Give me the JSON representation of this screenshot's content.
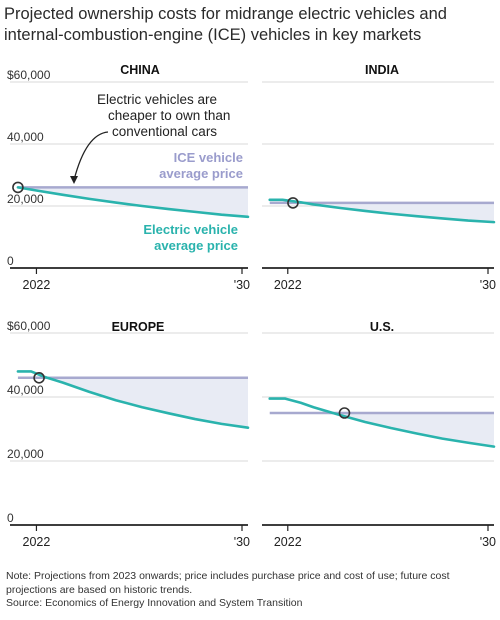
{
  "title": "Projected ownership costs for midrange electric vehicles and internal-combustion-engine (ICE) vehicles in key markets",
  "colors": {
    "ev": "#2ab3ad",
    "ice": "#a7a9cf",
    "band": "#e8ebf4",
    "axis": "#222222",
    "grid": "#d9d9d9",
    "annotation_ice": "#9a9ccc"
  },
  "chart_data": [
    {
      "type": "line",
      "title": "CHINA",
      "x_tick_labels": [
        "2022",
        "'30"
      ],
      "y_tick_labels": [
        "$60,000",
        "40,000",
        "20,000",
        "0"
      ],
      "ylim": [
        0,
        60000
      ],
      "xlim": [
        2021,
        2030
      ],
      "series": [
        {
          "name": "ICE vehicle average price",
          "x": [
            2021.3,
            2030
          ],
          "values": [
            26000,
            26000
          ]
        },
        {
          "name": "Electric vehicle average price",
          "x": [
            2021.3,
            2022,
            2023,
            2024,
            2025,
            2026,
            2027,
            2028,
            2029,
            2030
          ],
          "values": [
            26000,
            25000,
            23600,
            22300,
            21100,
            20000,
            19000,
            18100,
            17200,
            16500
          ]
        }
      ],
      "crossover": {
        "x": 2021.3,
        "y": 26000
      },
      "annotations": {
        "callout": "Electric vehicles are cheaper to own than conventional cars",
        "ice_label": "ICE vehicle average price",
        "ev_label": "Electric vehicle average price"
      }
    },
    {
      "type": "line",
      "title": "INDIA",
      "x_tick_labels": [
        "2022",
        "'30"
      ],
      "y_tick_labels": [],
      "ylim": [
        0,
        60000
      ],
      "xlim": [
        2021,
        2030
      ],
      "series": [
        {
          "x": [
            2021.3,
            2030
          ],
          "values": [
            21000,
            21000
          ]
        },
        {
          "x": [
            2021.3,
            2021.8,
            2022.5,
            2023,
            2024,
            2025,
            2026,
            2027,
            2028,
            2029,
            2030
          ],
          "values": [
            22000,
            22000,
            21200,
            20500,
            19400,
            18400,
            17500,
            16700,
            16000,
            15300,
            14800
          ]
        }
      ],
      "crossover": {
        "x": 2022.2,
        "y": 21000
      }
    },
    {
      "type": "line",
      "title": "EUROPE",
      "x_tick_labels": [
        "2022",
        "'30"
      ],
      "y_tick_labels": [
        "$60,000",
        "40,000",
        "20,000",
        "0"
      ],
      "ylim": [
        0,
        60000
      ],
      "xlim": [
        2021,
        2030
      ],
      "series": [
        {
          "x": [
            2021.3,
            2030
          ],
          "values": [
            46000,
            46000
          ]
        },
        {
          "x": [
            2021.3,
            2021.8,
            2022.3,
            2023,
            2024,
            2025,
            2026,
            2027,
            2028,
            2029,
            2030
          ],
          "values": [
            48000,
            48000,
            46300,
            44500,
            41600,
            39000,
            36800,
            34900,
            33100,
            31600,
            30400
          ]
        }
      ],
      "crossover": {
        "x": 2022.1,
        "y": 46000
      }
    },
    {
      "type": "line",
      "title": "U.S.",
      "x_tick_labels": [
        "2022",
        "'30"
      ],
      "y_tick_labels": [],
      "ylim": [
        0,
        60000
      ],
      "xlim": [
        2021,
        2030
      ],
      "series": [
        {
          "x": [
            2021.3,
            2030
          ],
          "values": [
            35000,
            35000
          ]
        },
        {
          "x": [
            2021.3,
            2021.9,
            2022.5,
            2023,
            2024,
            2025,
            2026,
            2027,
            2028,
            2029,
            2030
          ],
          "values": [
            39500,
            39500,
            38200,
            36800,
            34400,
            32200,
            30300,
            28600,
            27000,
            25700,
            24500
          ]
        }
      ],
      "crossover": {
        "x": 2024.2,
        "y": 35000
      }
    }
  ],
  "footer": {
    "note": "Note: Projections from 2023 onwards; price includes purchase price and cost of use; future cost projections are based on historic trends.",
    "source": "Source: Economics of Energy Innovation and System Transition"
  }
}
